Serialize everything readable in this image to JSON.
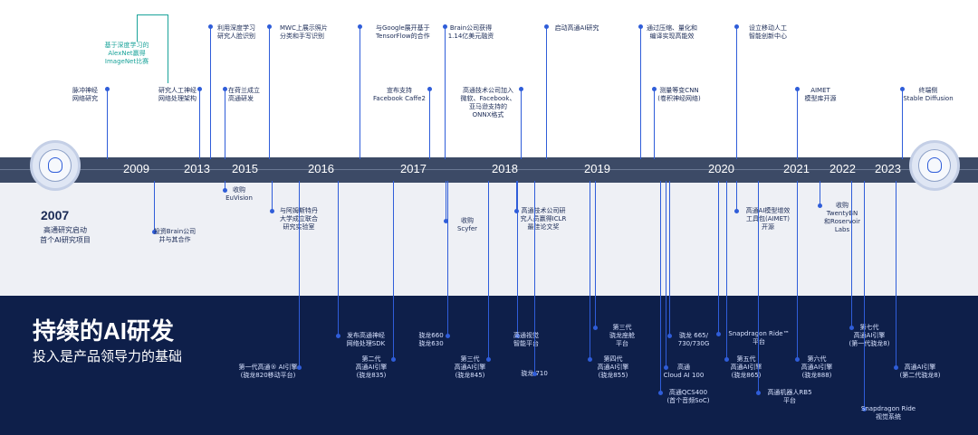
{
  "header": {
    "title": "持续的AI研发",
    "subtitle": "投入是产品领导力的基础"
  },
  "start": {
    "year": "2007",
    "line1": "高通研究启动",
    "line2": "首个AI研究项目"
  },
  "years": [
    "2009",
    "2013",
    "2015",
    "2016",
    "2017",
    "2018",
    "2019",
    "2020",
    "2021",
    "2022",
    "2023"
  ],
  "top_events": [
    [
      "脉冲神经",
      "网络研究"
    ],
    [
      "研究人工神经",
      "网络处理架构"
    ],
    [
      "利用深度学习",
      "研究人脸识别"
    ],
    [
      "在荷兰成立",
      "高通研发"
    ],
    [
      "MWC上展示照片",
      "分类和手写识别"
    ],
    [
      "与Google展开基于",
      "TensorFlow的合作"
    ],
    [
      "宣布支持",
      "Facebook Caffe2"
    ],
    [
      "Brain公司获得",
      "1.14亿美元融资"
    ],
    [
      "高通技术公司加入",
      "微软、Facebook、",
      "亚马逊支持的",
      "ONNX格式"
    ],
    [
      "启动高通AI研究"
    ],
    [
      "通过压缩、量化和",
      "编译实现高能效"
    ],
    [
      "测量等变CNN",
      "(卷积神经网络)"
    ],
    [
      "设立移动人工",
      "智能创新中心"
    ],
    [
      "AIMET",
      "模型库开源"
    ],
    [
      "终端侧",
      "Stable Diffusion"
    ]
  ],
  "teal_event": [
    "基于深度学习的",
    "AlexNet赢得",
    "ImageNet比赛"
  ],
  "mid_events": [
    [
      "投资Brain公司",
      "并与其合作"
    ],
    [
      "收购",
      "EuVision"
    ],
    [
      "与阿姆斯特丹",
      "大学成立联合",
      "研究实验室"
    ],
    [
      "收购",
      "Scyfer"
    ],
    [
      "高通技术公司研",
      "究人员赢得ICLR",
      "最佳论文奖"
    ],
    [
      "高通AI模型增效",
      "工具包(AIMET)",
      "开源"
    ],
    [
      "收购",
      "TwentyBN",
      "和Roservoir",
      "Labs"
    ]
  ],
  "bottom_events": [
    [
      "第一代高通® AI引擎",
      "(骁龙820移动平台)"
    ],
    [
      "发布高通神经",
      "网络处理SDK"
    ],
    [
      "第二代",
      "高通AI引擎",
      "(骁龙835)"
    ],
    [
      "骁龙660",
      "骁龙630"
    ],
    [
      "第三代",
      "高通AI引擎",
      "(骁龙845)"
    ],
    [
      "高通视觉",
      "智能平台"
    ],
    [
      "骁龙 710"
    ],
    [
      "第三代",
      "骁龙座舱",
      "平台"
    ],
    [
      "第四代",
      "高通AI引擎",
      "(骁龙855)"
    ],
    [
      "高通QCS400",
      "(首个音频SoC)"
    ],
    [
      "高通",
      "Cloud AI 100"
    ],
    [
      "骁龙 665/",
      "730/730G"
    ],
    [
      "Snapdragon Ride™",
      "平台"
    ],
    [
      "第五代",
      "高通AI引擎",
      "(骁龙865)"
    ],
    [
      "高通机器人RB5",
      "平台"
    ],
    [
      "第六代",
      "高通AI引擎",
      "(骁龙888)"
    ],
    [
      "第七代",
      "高通AI引擎",
      "(第一代骁龙8)"
    ],
    [
      "Snapdragon Ride",
      "视觉系统"
    ],
    [
      "高通AI引擎",
      "(第二代骁龙8)"
    ]
  ],
  "colors": {
    "accent": "#2f5dd9",
    "bar": "#3c4a66",
    "dark_bg": "#0e1f4a",
    "teal": "#1aa39a"
  },
  "icons": [
    "brain-chip-icon-left",
    "brain-chip-icon-right"
  ]
}
